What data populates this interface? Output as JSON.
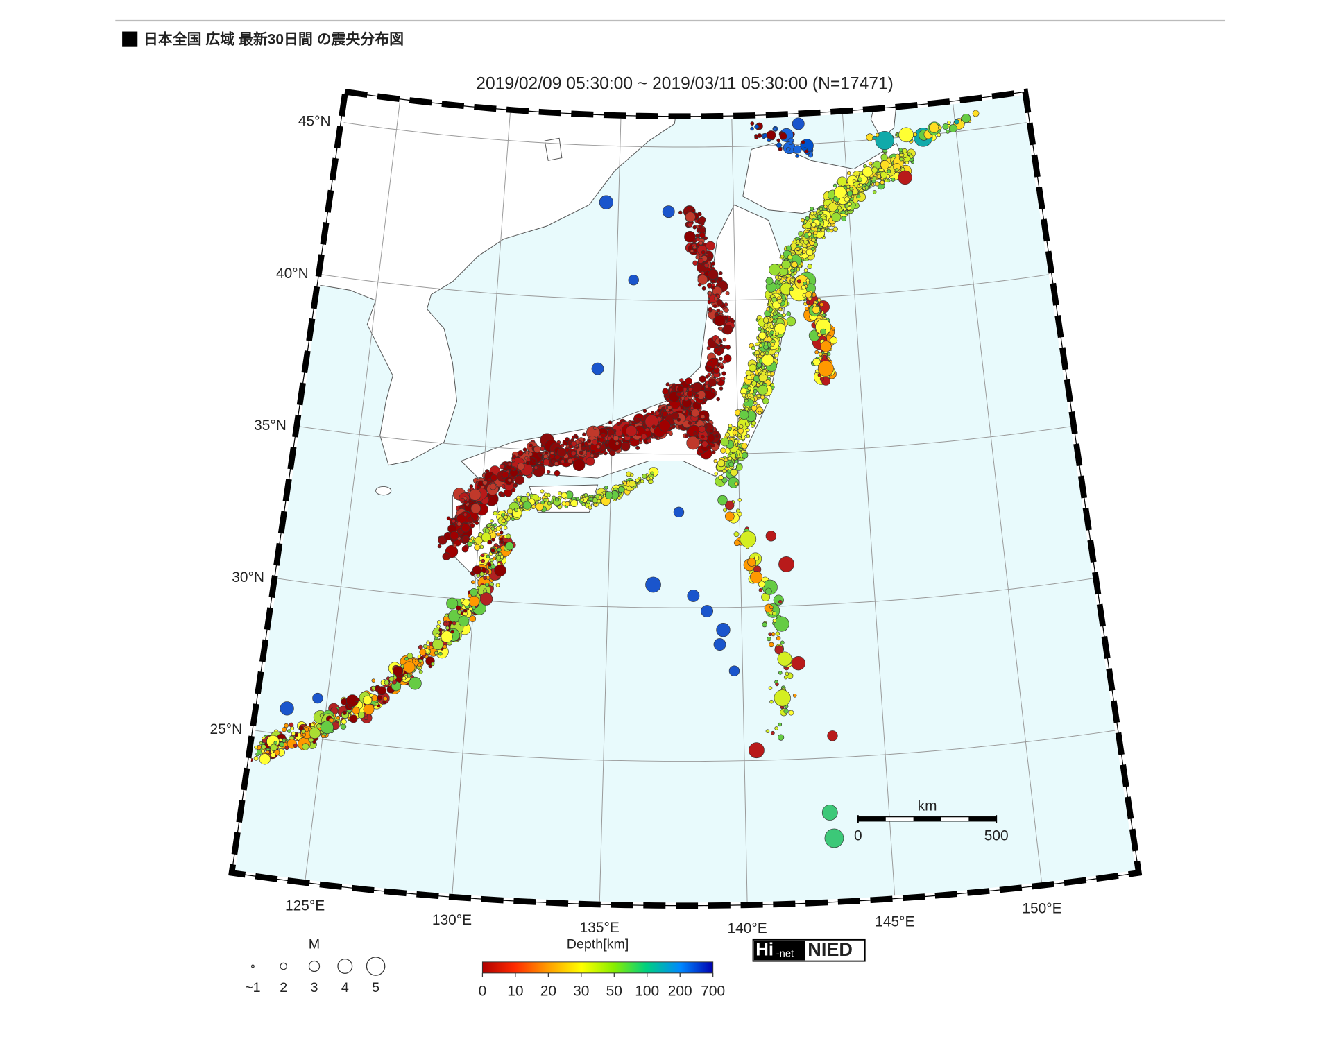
{
  "header": {
    "title": "日本全国 広域 最新30日間 の震央分布図"
  },
  "map": {
    "title": "2019/02/09 05:30:00 ~ 2019/03/11 05:30:00 (N=17471)",
    "lats": [
      {
        "value": 45,
        "label": "45°N"
      },
      {
        "value": 40,
        "label": "40°N"
      },
      {
        "value": 35,
        "label": "35°N"
      },
      {
        "value": 30,
        "label": "30°N"
      },
      {
        "value": 25,
        "label": "25°N"
      }
    ],
    "lons": [
      {
        "value": 125,
        "label": "125°E"
      },
      {
        "value": 130,
        "label": "130°E"
      },
      {
        "value": 135,
        "label": "135°E"
      },
      {
        "value": 140,
        "label": "140°E"
      },
      {
        "value": 145,
        "label": "145°E"
      },
      {
        "value": 150,
        "label": "150°E"
      }
    ],
    "scale_bar": {
      "unit": "km",
      "ticks": [
        0,
        500
      ]
    }
  },
  "legend": {
    "magnitude": {
      "title": "M",
      "ticks": [
        {
          "value": 1,
          "label": "~1"
        },
        2,
        3,
        4,
        5
      ]
    },
    "depth": {
      "title": "Depth[km]",
      "ticks": [
        0,
        10,
        20,
        30,
        50,
        100,
        200,
        700
      ]
    }
  },
  "logo": {
    "hi": "Hi",
    "net": "-net",
    "nied": "NIED"
  }
}
